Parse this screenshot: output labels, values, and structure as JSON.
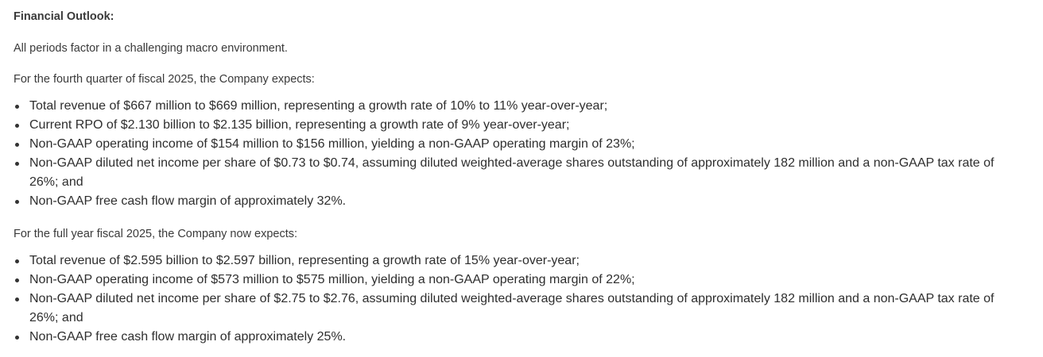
{
  "title": "Financial Outlook:",
  "intro": "All periods factor in a challenging macro environment.",
  "q4": {
    "label": "For the fourth quarter of fiscal 2025, the Company expects:",
    "items": [
      "Total revenue of $667 million to $669 million, representing a growth rate of 10% to 11% year-over-year;",
      "Current RPO of $2.130 billion to $2.135 billion, representing a growth rate of 9% year-over-year;",
      "Non-GAAP operating income of $154 million to $156 million, yielding a non-GAAP operating margin of 23%;",
      "Non-GAAP diluted net income per share of $0.73 to $0.74, assuming diluted weighted-average shares outstanding of approximately 182 million and a non-GAAP tax rate of 26%; and",
      "Non-GAAP free cash flow margin of approximately 32%."
    ]
  },
  "fy": {
    "label": "For the full year fiscal 2025, the Company now expects:",
    "items": [
      "Total revenue of $2.595 billion to $2.597 billion, representing a growth rate of 15% year-over-year;",
      "Non-GAAP operating income of $573 million to $575 million, yielding a non-GAAP operating margin of 22%;",
      "Non-GAAP diluted net income per share of $2.75 to $2.76, assuming diluted weighted-average shares outstanding of approximately 182 million and a non-GAAP tax rate of 26%; and",
      "Non-GAAP free cash flow margin of approximately 25%."
    ]
  }
}
